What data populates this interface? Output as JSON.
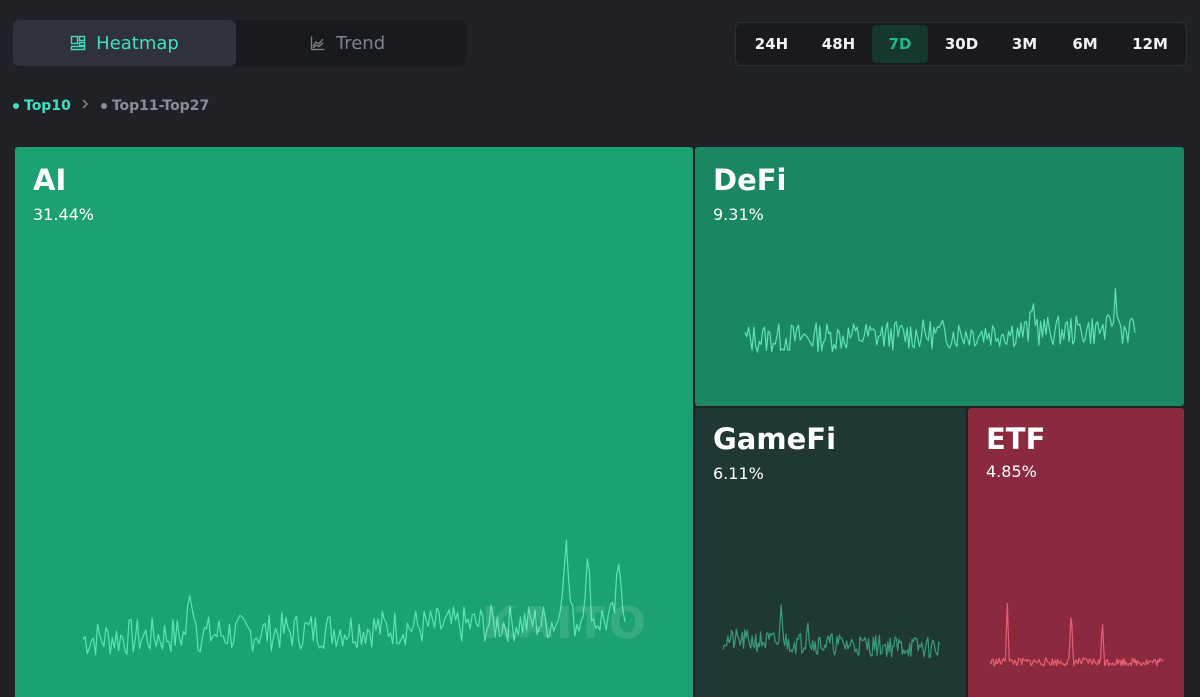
{
  "view_toggle": {
    "tabs": [
      {
        "label": "Heatmap",
        "icon": "heatmap-icon",
        "active": true
      },
      {
        "label": "Trend",
        "icon": "trend-chart-icon",
        "active": false
      }
    ]
  },
  "time_range": {
    "options": [
      "24H",
      "48H",
      "7D",
      "30D",
      "3M",
      "6M",
      "12M"
    ],
    "selected": "7D"
  },
  "breadcrumb": {
    "items": [
      {
        "label": "Top10",
        "active": true
      },
      {
        "label": "Top11-Top27",
        "active": false
      }
    ],
    "separator_icon": "chevron-right-icon"
  },
  "watermark": "KAITO",
  "colors": {
    "accent": "#3de0c2",
    "positive_strong": "#1ba270",
    "positive": "#1a8662",
    "neutral": "#1f3835",
    "negative": "#8b2a3e"
  },
  "chart_data": {
    "type": "heatmap",
    "subtype": "treemap",
    "tiles": [
      {
        "name": "AI",
        "value": "31.44%",
        "share": 31.44
      },
      {
        "name": "DeFi",
        "value": "9.31%",
        "share": 9.31
      },
      {
        "name": "GameFi",
        "value": "6.11%",
        "share": 6.11
      },
      {
        "name": "ETF",
        "value": "4.85%",
        "share": 4.85
      }
    ]
  }
}
